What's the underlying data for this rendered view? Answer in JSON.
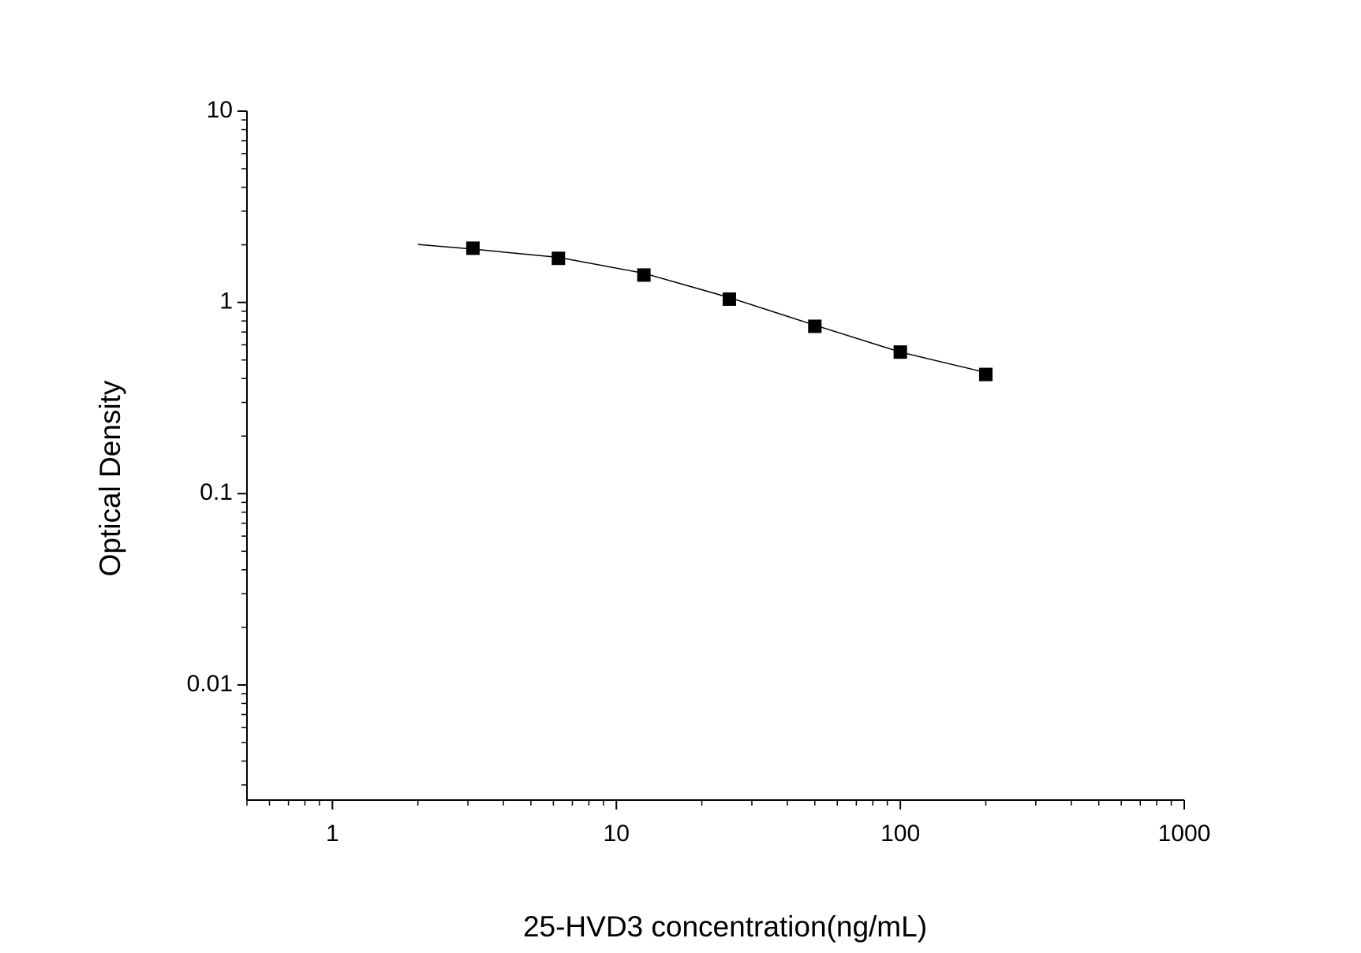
{
  "chart_data": {
    "type": "scatter",
    "x_label": "25-HVD3 concentration(ng/mL)",
    "y_label": "Optical Density",
    "xscale": "log",
    "yscale": "log",
    "xlim": [
      0.5,
      1000
    ],
    "ylim": [
      0.0025,
      10
    ],
    "xticks": [
      1,
      10,
      100,
      1000
    ],
    "yticks": [
      0.01,
      0.1,
      1,
      10
    ],
    "minor_ticks": true,
    "series": [
      {
        "type": "scatter",
        "color": "#000000",
        "x": [
          3.125,
          6.25,
          12.5,
          25,
          50,
          100,
          200
        ],
        "values": [
          1.92,
          1.7,
          1.39,
          1.04,
          0.75,
          0.55,
          0.42
        ]
      },
      {
        "type": "line",
        "color": "#000000",
        "x": [
          2,
          3.125,
          6.25,
          12.5,
          25,
          50,
          100,
          200
        ],
        "values": [
          2.01,
          1.9,
          1.72,
          1.42,
          1.06,
          0.76,
          0.55,
          0.43
        ]
      }
    ]
  }
}
